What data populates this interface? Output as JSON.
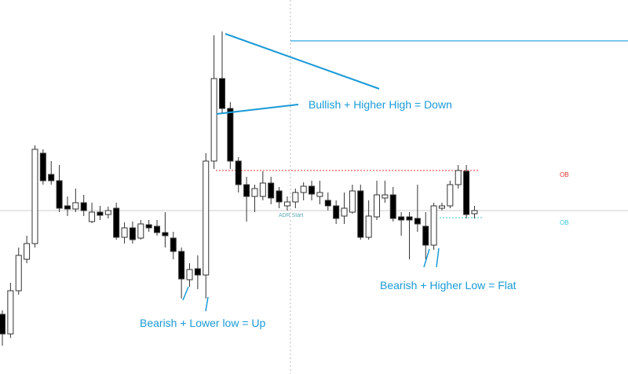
{
  "chart_data": {
    "type": "candlestick",
    "ylim": [
      0,
      476
    ],
    "up_color": "#ffffff",
    "down_color": "#000000",
    "wick_color": "#333333",
    "open": [
      76,
      51,
      106,
      146,
      166,
      281,
      254,
      246,
      214,
      210,
      218,
      194,
      206,
      203,
      211,
      174,
      186,
      173,
      190,
      188,
      180,
      173,
      156,
      120,
      134,
      126,
      271,
      376,
      338,
      271,
      241,
      226,
      226,
      243,
      233,
      214,
      219,
      231,
      239,
      226,
      221,
      214,
      201,
      206,
      233,
      174,
      200,
      224,
      228,
      200,
      200,
      198,
      188,
      164,
      211,
      214,
      241,
      258,
      204
    ],
    "high": [
      81,
      116,
      161,
      176,
      291,
      286,
      271,
      266,
      226,
      236,
      228,
      218,
      214,
      213,
      218,
      193,
      194,
      196,
      196,
      196,
      206,
      181,
      161,
      141,
      151,
      281,
      431,
      436,
      346,
      276,
      251,
      241,
      258,
      251,
      238,
      226,
      236,
      244,
      246,
      246,
      231,
      221,
      231,
      241,
      241,
      221,
      246,
      246,
      238,
      206,
      206,
      241,
      206,
      218,
      218,
      246,
      266,
      266,
      214
    ],
    "low": [
      36,
      46,
      101,
      141,
      161,
      241,
      241,
      206,
      201,
      206,
      201,
      192,
      196,
      198,
      171,
      166,
      166,
      171,
      181,
      176,
      161,
      146,
      96,
      111,
      108,
      96,
      261,
      331,
      261,
      231,
      194,
      206,
      221,
      216,
      211,
      208,
      211,
      221,
      221,
      216,
      208,
      191,
      191,
      204,
      171,
      171,
      196,
      218,
      194,
      176,
      146,
      181,
      146,
      158,
      208,
      211,
      236,
      198,
      198
    ],
    "close": [
      51,
      106,
      151,
      166,
      286,
      246,
      246,
      211,
      210,
      218,
      208,
      206,
      202,
      208,
      174,
      186,
      171,
      191,
      186,
      180,
      176,
      156,
      121,
      133,
      126,
      271,
      376,
      338,
      271,
      241,
      226,
      236,
      243,
      224,
      219,
      219,
      231,
      239,
      229,
      231,
      214,
      198,
      211,
      233,
      174,
      201,
      228,
      228,
      198,
      196,
      196,
      191,
      164,
      214,
      214,
      241,
      259,
      203,
      208
    ],
    "annotations": [
      "Bullish + Higher High = Down",
      "Bearish + Lower low = Up",
      "Bearish + Higher Low = Flat"
    ],
    "ob_labels": [
      "OB",
      "OB"
    ],
    "session_label": "ADR Start"
  }
}
